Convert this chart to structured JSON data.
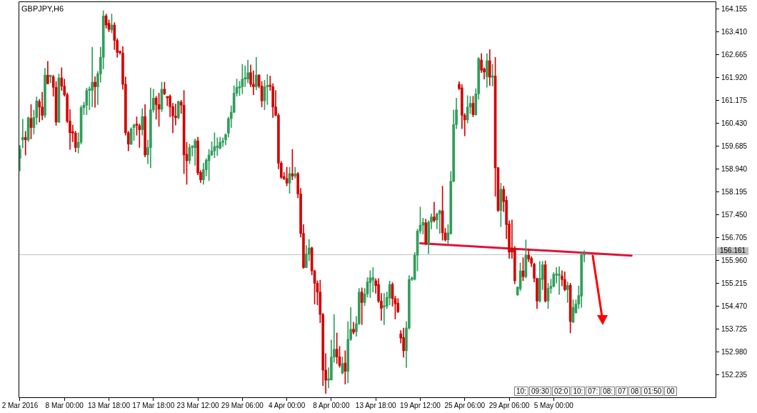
{
  "chart_data": {
    "type": "candlestick",
    "title": "GBPJPY,H6",
    "categories": [
      "2 Mar 2016",
      null,
      null,
      null,
      null,
      null,
      null,
      null,
      null,
      null,
      null,
      null,
      null,
      null,
      null,
      null,
      "8 Mar 00:00",
      null,
      null,
      null,
      null,
      null,
      null,
      null,
      null,
      null,
      null,
      null,
      null,
      null,
      null,
      null,
      "13 Mar 18:00",
      null,
      null,
      null,
      null,
      null,
      null,
      null,
      null,
      null,
      null,
      null,
      null,
      null,
      null,
      null,
      "17 Mar 18:00",
      null,
      null,
      null,
      null,
      null,
      null,
      null,
      null,
      null,
      null,
      null,
      null,
      null,
      null,
      null,
      "23 Mar 12:00",
      null,
      null,
      null,
      null,
      null,
      null,
      null,
      null,
      null,
      null,
      null,
      null,
      null,
      null,
      null,
      "29 Mar 06:00",
      null,
      null,
      null,
      null,
      null,
      null,
      null,
      null,
      null,
      null,
      null,
      null,
      null,
      null,
      null,
      "4 Apr 00:00",
      null,
      null,
      null,
      null,
      null,
      null,
      null,
      null,
      null,
      null,
      null,
      null,
      null,
      null,
      null,
      "8 Apr 00:00",
      null,
      null,
      null,
      null,
      null,
      null,
      null,
      null,
      null,
      null,
      null,
      null,
      null,
      null,
      null,
      "13 Apr 18:00",
      null,
      null,
      null,
      null,
      null,
      null,
      null,
      null,
      null,
      null,
      null,
      null,
      null,
      null,
      null,
      "19 Apr 12:00",
      null,
      null,
      null,
      null,
      null,
      null,
      null,
      null,
      null,
      null,
      null,
      null,
      null,
      null,
      null,
      "25 Apr 06:00",
      null,
      null,
      null,
      null,
      null,
      null,
      null,
      null,
      null,
      null,
      null,
      null,
      null,
      null,
      null,
      "29 Apr 06:00",
      null,
      null,
      null,
      null,
      null,
      null,
      null,
      null,
      null,
      null,
      null,
      null,
      null,
      null,
      null,
      "5 May 00:00",
      null,
      null,
      null,
      null,
      null,
      null,
      null,
      null,
      null,
      null,
      null,
      null,
      null,
      null,
      null,
      null,
      null,
      null,
      null,
      null,
      null,
      null,
      null,
      null,
      null,
      null,
      null,
      null,
      null,
      null,
      null,
      null,
      null,
      null,
      null,
      null,
      null,
      null,
      null,
      null,
      null,
      null,
      null,
      null,
      null,
      null,
      null,
      null,
      null,
      null,
      null,
      null,
      null,
      null,
      null,
      null,
      null,
      null
    ],
    "ohlc": [
      [
        159.3,
        159.72,
        158.89,
        159.6
      ],
      [
        159.9,
        160.57,
        159.64,
        159.98
      ],
      [
        159.98,
        160.18,
        159.4,
        159.9
      ],
      [
        159.9,
        160.65,
        159.84,
        160.62
      ],
      [
        160.6,
        161.05,
        159.93,
        160.3
      ],
      [
        160.3,
        160.87,
        160.09,
        160.63
      ],
      [
        160.63,
        161.3,
        160.4,
        161.17
      ],
      [
        161.15,
        161.22,
        160.48,
        160.97
      ],
      [
        160.97,
        161.45,
        160.55,
        160.7
      ],
      [
        160.7,
        162.23,
        160.63,
        162.01
      ],
      [
        162.01,
        162.46,
        161.72,
        161.73
      ],
      [
        161.96,
        162.01,
        161.76,
        161.98
      ],
      [
        161.96,
        162.01,
        161.32,
        161.61
      ],
      [
        161.61,
        161.8,
        160.37,
        160.48
      ],
      [
        160.48,
        162.05,
        160.46,
        161.92
      ],
      [
        161.92,
        162.25,
        161.51,
        161.65
      ],
      [
        161.65,
        161.88,
        161.32,
        161.37
      ],
      [
        161.37,
        161.43,
        160.46,
        160.51
      ],
      [
        160.51,
        160.89,
        159.59,
        160.13
      ],
      [
        160.13,
        160.38,
        159.84,
        160.12
      ],
      [
        160.12,
        160.18,
        159.51,
        159.65
      ],
      [
        159.65,
        160.13,
        159.47,
        159.82
      ],
      [
        159.82,
        161.01,
        159.76,
        160.95
      ],
      [
        160.95,
        161.13,
        160.72,
        161.03
      ],
      [
        161.03,
        161.59,
        160.72,
        161.51
      ],
      [
        161.51,
        161.63,
        160.88,
        161.52
      ],
      [
        161.51,
        162.92,
        160.98,
        161.78
      ],
      [
        161.78,
        161.96,
        160.96,
        161.63
      ],
      [
        161.63,
        162.13,
        161.05,
        162.05
      ],
      [
        162.05,
        162.92,
        161.78,
        162.59
      ],
      [
        162.59,
        164.11,
        162.21,
        163.94
      ],
      [
        163.94,
        164.0,
        163.54,
        163.64
      ],
      [
        163.7,
        163.81,
        163.42,
        163.5
      ],
      [
        163.48,
        164.0,
        163.39,
        163.64
      ],
      [
        163.64,
        163.72,
        162.84,
        163.14
      ],
      [
        163.14,
        163.2,
        162.59,
        162.75
      ],
      [
        162.76,
        162.8,
        162.69,
        162.74
      ],
      [
        162.73,
        162.94,
        161.55,
        161.71
      ],
      [
        161.71,
        161.95,
        160.05,
        160.13
      ],
      [
        160.13,
        160.18,
        159.54,
        159.76
      ],
      [
        159.76,
        160.3,
        159.74,
        160.26
      ],
      [
        160.3,
        160.42,
        159.88,
        160.38
      ],
      [
        160.38,
        160.65,
        160.05,
        160.37
      ],
      [
        160.36,
        160.42,
        159.65,
        160.23
      ],
      [
        160.23,
        160.92,
        160.05,
        160.66
      ],
      [
        160.66,
        161.05,
        159.34,
        159.41
      ],
      [
        159.41,
        159.9,
        159.12,
        159.65
      ],
      [
        159.65,
        161.59,
        158.99,
        160.88
      ],
      [
        160.88,
        161.55,
        160.8,
        161.26
      ],
      [
        161.26,
        161.32,
        160.57,
        161.05
      ],
      [
        161.05,
        161.42,
        160.34,
        160.9
      ],
      [
        160.9,
        161.78,
        160.82,
        161.55
      ],
      [
        161.55,
        161.78,
        161.37,
        161.4
      ],
      [
        161.28,
        161.3,
        161.01,
        161.27
      ],
      [
        161.32,
        161.37,
        160.65,
        160.98
      ],
      [
        160.98,
        161.09,
        160.13,
        160.68
      ],
      [
        160.68,
        161.07,
        160.38,
        160.62
      ],
      [
        160.62,
        161.17,
        160.58,
        161.15
      ],
      [
        161.13,
        161.19,
        160.76,
        161.03
      ],
      [
        161.03,
        161.51,
        158.8,
        159.41
      ],
      [
        159.43,
        159.82,
        158.45,
        159.22
      ],
      [
        159.22,
        159.76,
        159.12,
        159.65
      ],
      [
        159.65,
        159.72,
        159.37,
        159.66
      ],
      [
        159.64,
        159.93,
        159.07,
        159.87
      ],
      [
        159.87,
        159.99,
        158.76,
        158.82
      ],
      [
        158.84,
        158.9,
        158.51,
        158.6
      ],
      [
        158.6,
        159.14,
        158.45,
        158.93
      ],
      [
        158.93,
        159.29,
        158.72,
        159.24
      ],
      [
        159.22,
        159.59,
        158.57,
        159.41
      ],
      [
        159.41,
        159.84,
        159.39,
        159.54
      ],
      [
        159.54,
        160.13,
        159.32,
        159.68
      ],
      [
        159.65,
        159.97,
        159.39,
        159.7
      ],
      [
        159.63,
        159.99,
        159.6,
        159.82
      ],
      [
        159.82,
        159.97,
        159.68,
        159.83
      ],
      [
        159.9,
        160.1,
        159.74,
        160.07
      ],
      [
        160.12,
        160.64,
        159.99,
        160.59
      ],
      [
        160.59,
        161.01,
        160.3,
        160.8
      ],
      [
        160.8,
        161.67,
        160.78,
        161.42
      ],
      [
        161.42,
        161.88,
        161.32,
        161.61
      ],
      [
        161.59,
        161.81,
        161.34,
        161.63
      ],
      [
        161.63,
        162.36,
        161.4,
        161.88
      ],
      [
        161.88,
        162.31,
        161.63,
        161.89
      ],
      [
        161.88,
        162.5,
        161.76,
        162.09
      ],
      [
        162.09,
        162.34,
        161.63,
        161.71
      ],
      [
        161.71,
        162.15,
        161.37,
        161.63
      ],
      [
        161.63,
        162.59,
        161.53,
        162.01
      ],
      [
        162.01,
        162.03,
        161.59,
        161.65
      ],
      [
        161.65,
        161.8,
        160.97,
        161.17
      ],
      [
        161.17,
        161.84,
        160.88,
        161.63
      ],
      [
        161.63,
        162.03,
        161.05,
        161.65
      ],
      [
        161.65,
        161.98,
        161.51,
        161.64
      ],
      [
        161.63,
        161.73,
        160.63,
        160.97
      ],
      [
        160.97,
        161.51,
        160.68,
        160.7
      ],
      [
        160.7,
        160.76,
        158.95,
        159.14
      ],
      [
        159.14,
        159.2,
        158.64,
        158.68
      ],
      [
        158.7,
        158.84,
        158.6,
        158.64
      ],
      [
        158.64,
        159.01,
        158.4,
        158.49
      ],
      [
        158.49,
        159.01,
        158.16,
        158.8
      ],
      [
        158.8,
        159.59,
        158.6,
        158.72
      ],
      [
        158.72,
        159.01,
        158.65,
        158.79
      ],
      [
        158.8,
        158.84,
        158.01,
        158.14
      ],
      [
        158.14,
        158.32,
        156.73,
        156.85
      ],
      [
        156.85,
        157.14,
        155.71,
        155.74
      ],
      [
        155.74,
        156.46,
        155.73,
        156.18
      ],
      [
        156.18,
        156.66,
        155.96,
        156.38
      ],
      [
        156.38,
        156.41,
        155.5,
        155.63
      ],
      [
        155.63,
        155.66,
        154.55,
        155.23
      ],
      [
        155.23,
        155.31,
        154.52,
        154.94
      ],
      [
        154.94,
        155.33,
        153.94,
        154.21
      ],
      [
        154.21,
        154.25,
        151.89,
        152.4
      ],
      [
        152.4,
        152.94,
        151.64,
        152.07
      ],
      [
        152.07,
        152.48,
        151.82,
        152.08
      ],
      [
        152.08,
        153.38,
        152.07,
        152.82
      ],
      [
        152.82,
        154.21,
        152.65,
        153.08
      ],
      [
        153.08,
        153.61,
        152.61,
        152.83
      ],
      [
        152.83,
        153.17,
        152.49,
        152.55
      ],
      [
        152.3,
        152.83,
        152.27,
        152.61
      ],
      [
        152.63,
        153.03,
        151.94,
        152.36
      ],
      [
        152.36,
        153.98,
        151.98,
        153.4
      ],
      [
        153.4,
        154.44,
        153.36,
        153.73
      ],
      [
        153.73,
        153.96,
        153.57,
        153.63
      ],
      [
        153.65,
        154.15,
        153.5,
        153.91
      ],
      [
        153.91,
        155.06,
        153.88,
        154.94
      ],
      [
        154.94,
        155.08,
        153.88,
        154.6
      ],
      [
        154.6,
        155.06,
        154.5,
        154.88
      ],
      [
        154.88,
        155.41,
        154.78,
        155.27
      ],
      [
        155.25,
        155.64,
        154.76,
        155.41
      ],
      [
        155.33,
        155.74,
        154.94,
        155.41
      ],
      [
        155.31,
        155.38,
        154.9,
        155.15
      ],
      [
        155.19,
        155.38,
        154.6,
        154.65
      ],
      [
        154.65,
        154.9,
        154.02,
        154.41
      ],
      [
        154.45,
        154.9,
        153.88,
        154.47
      ],
      [
        154.48,
        154.94,
        154.4,
        154.77
      ],
      [
        154.75,
        155.3,
        154.52,
        155.19
      ],
      [
        155.19,
        155.25,
        154.48,
        154.73
      ],
      [
        154.73,
        154.81,
        154.06,
        154.56
      ],
      [
        154.58,
        154.73,
        154.27,
        154.3
      ],
      [
        153.58,
        153.69,
        153.28,
        153.44
      ],
      [
        153.46,
        153.77,
        152.82,
        153.03
      ],
      [
        153.03,
        153.98,
        152.48,
        153.77
      ],
      [
        153.77,
        155.48,
        153.73,
        155.35
      ],
      [
        155.35,
        155.44,
        155.31,
        155.36
      ],
      [
        155.36,
        156.23,
        155.33,
        156.14
      ],
      [
        156.14,
        156.99,
        155.63,
        156.93
      ],
      [
        156.93,
        157.71,
        156.85,
        157.12
      ],
      [
        157.12,
        157.35,
        156.83,
        157.21
      ],
      [
        157.2,
        157.32,
        156.48,
        156.52
      ],
      [
        156.52,
        157.27,
        156.19,
        157.22
      ],
      [
        157.22,
        157.49,
        157.0,
        157.39
      ],
      [
        157.39,
        157.87,
        157.22,
        157.27
      ],
      [
        157.29,
        157.52,
        157.0,
        157.49
      ],
      [
        157.49,
        157.62,
        156.85,
        157.59
      ],
      [
        157.59,
        158.39,
        156.63,
        156.87
      ],
      [
        156.87,
        157.02,
        156.6,
        156.64
      ],
      [
        156.64,
        157.14,
        156.52,
        156.87
      ],
      [
        156.85,
        158.87,
        156.82,
        158.55
      ],
      [
        158.55,
        160.87,
        158.53,
        160.4
      ],
      [
        160.4,
        161.26,
        160.26,
        160.88
      ],
      [
        161.71,
        161.8,
        161.53,
        161.57
      ],
      [
        161.59,
        161.7,
        160.26,
        160.7
      ],
      [
        160.7,
        160.76,
        160.03,
        160.55
      ],
      [
        160.55,
        161.34,
        160.45,
        160.97
      ],
      [
        160.97,
        161.32,
        160.76,
        161.09
      ],
      [
        161.09,
        161.32,
        160.65,
        160.72
      ],
      [
        160.72,
        161.57,
        160.7,
        161.4
      ],
      [
        161.4,
        162.59,
        161.22,
        162.55
      ],
      [
        162.5,
        162.71,
        162.09,
        162.17
      ],
      [
        162.21,
        162.25,
        161.88,
        162.11
      ],
      [
        161.96,
        162.71,
        161.61,
        162.48
      ],
      [
        162.48,
        162.84,
        161.67,
        161.94
      ],
      [
        161.94,
        162.36,
        161.65,
        161.98
      ],
      [
        161.98,
        162.59,
        158.06,
        158.99
      ],
      [
        158.99,
        159.01,
        157.56,
        157.6
      ],
      [
        157.6,
        158.49,
        157.07,
        158.29
      ],
      [
        158.29,
        158.39,
        157.56,
        157.89
      ],
      [
        157.93,
        158.06,
        156.68,
        157.14
      ],
      [
        157.16,
        157.27,
        156.04,
        156.24
      ],
      [
        156.35,
        157.29,
        156.04,
        156.24
      ],
      [
        156.35,
        156.43,
        155.21,
        155.31
      ],
      [
        154.85,
        155.12,
        154.83,
        155.1
      ],
      [
        155.05,
        155.89,
        154.98,
        155.63
      ],
      [
        155.63,
        156.06,
        155.31,
        155.44
      ],
      [
        155.44,
        156.64,
        155.4,
        156.14
      ],
      [
        156.14,
        156.35,
        155.93,
        156.02
      ],
      [
        156.04,
        156.1,
        155.77,
        155.88
      ],
      [
        155.85,
        155.89,
        155.27,
        155.39
      ],
      [
        155.38,
        155.4,
        154.4,
        154.65
      ],
      [
        154.65,
        155.94,
        154.61,
        155.39
      ],
      [
        155.35,
        155.94,
        155.02,
        155.83
      ],
      [
        155.83,
        155.96,
        154.61,
        154.65
      ],
      [
        154.65,
        155.23,
        154.4,
        155.06
      ],
      [
        155.06,
        155.36,
        154.9,
        155.13
      ],
      [
        155.13,
        155.58,
        155.1,
        155.52
      ],
      [
        155.49,
        155.74,
        155.23,
        155.52
      ],
      [
        155.48,
        155.77,
        154.86,
        155.49
      ],
      [
        155.46,
        155.64,
        155.14,
        155.35
      ],
      [
        155.35,
        155.6,
        154.98,
        155.02
      ],
      [
        155.02,
        155.27,
        154.6,
        155.16
      ],
      [
        155.16,
        155.23,
        153.61,
        153.98
      ],
      [
        153.96,
        154.69,
        153.94,
        154.44
      ],
      [
        154.27,
        154.69,
        154.25,
        154.55
      ],
      [
        154.55,
        155.14,
        154.4,
        154.83
      ],
      [
        154.81,
        156.23,
        154.44,
        156.16
      ],
      [
        156.15,
        156.29,
        155.92,
        156.16
      ],
      null,
      null,
      null,
      null,
      null,
      null,
      null,
      null,
      null,
      null,
      null,
      null,
      null,
      null,
      null,
      null,
      null,
      null,
      null,
      null,
      null,
      null,
      null,
      null,
      null,
      null,
      null,
      null,
      null,
      null,
      null,
      null,
      null,
      null,
      null,
      null,
      null,
      null,
      null,
      null,
      null,
      null,
      null,
      null,
      null,
      null,
      null
    ],
    "colors": [
      "#2f9e5a",
      "#2f9e5a",
      "#d40000",
      "#2f9e5a",
      "#d40000",
      "#2f9e5a",
      "#2f9e5a",
      "#d40000",
      "#d40000",
      "#2f9e5a",
      "#d40000",
      "#2f9e5a",
      "#d40000",
      "#d40000",
      "#2f9e5a",
      "#d40000",
      "#d40000",
      "#d40000",
      "#d40000",
      "#d40000",
      "#d40000",
      "#2f9e5a",
      "#2f9e5a",
      "#2f9e5a",
      "#2f9e5a",
      "#2f9e5a",
      "#2f9e5a",
      "#d40000",
      "#2f9e5a",
      "#2f9e5a",
      "#2f9e5a",
      "#d40000",
      "#d40000",
      "#2f9e5a",
      "#d40000",
      "#d40000",
      "#d40000",
      "#d40000",
      "#d40000",
      "#d40000",
      "#2f9e5a",
      "#2f9e5a",
      "#d40000",
      "#d40000",
      "#2f9e5a",
      "#d40000",
      "#2f9e5a",
      "#2f9e5a",
      "#2f9e5a",
      "#d40000",
      "#d40000",
      "#2f9e5a",
      "#d40000",
      "#d40000",
      "#d40000",
      "#d40000",
      "#d40000",
      "#2f9e5a",
      "#d40000",
      "#d40000",
      "#d40000",
      "#2f9e5a",
      "#2f9e5a",
      "#2f9e5a",
      "#d40000",
      "#d40000",
      "#2f9e5a",
      "#2f9e5a",
      "#2f9e5a",
      "#2f9e5a",
      "#2f9e5a",
      "#2f9e5a",
      "#2f9e5a",
      "#2f9e5a",
      "#2f9e5a",
      "#2f9e5a",
      "#2f9e5a",
      "#2f9e5a",
      "#2f9e5a",
      "#2f9e5a",
      "#2f9e5a",
      "#2f9e5a",
      "#2f9e5a",
      "#d40000",
      "#d40000",
      "#2f9e5a",
      "#d40000",
      "#d40000",
      "#2f9e5a",
      "#2f9e5a",
      "#d40000",
      "#d40000",
      "#d40000",
      "#d40000",
      "#d40000",
      "#d40000",
      "#d40000",
      "#2f9e5a",
      "#d40000",
      "#2f9e5a",
      "#d40000",
      "#d40000",
      "#d40000",
      "#2f9e5a",
      "#2f9e5a",
      "#d40000",
      "#d40000",
      "#d40000",
      "#d40000",
      "#d40000",
      "#d40000",
      "#2f9e5a",
      "#2f9e5a",
      "#2f9e5a",
      "#d40000",
      "#d40000",
      "#2f9e5a",
      "#d40000",
      "#2f9e5a",
      "#2f9e5a",
      "#d40000",
      "#2f9e5a",
      "#2f9e5a",
      "#d40000",
      "#2f9e5a",
      "#2f9e5a",
      "#2f9e5a",
      "#2f9e5a",
      "#d40000",
      "#d40000",
      "#d40000",
      "#2f9e5a",
      "#2f9e5a",
      "#2f9e5a",
      "#d40000",
      "#d40000",
      "#d40000",
      "#d40000",
      "#d40000",
      "#2f9e5a",
      "#2f9e5a",
      "#2f9e5a",
      "#2f9e5a",
      "#2f9e5a",
      "#2f9e5a",
      "#2f9e5a",
      "#d40000",
      "#2f9e5a",
      "#2f9e5a",
      "#d40000",
      "#2f9e5a",
      "#2f9e5a",
      "#d40000",
      "#d40000",
      "#2f9e5a",
      "#2f9e5a",
      "#2f9e5a",
      "#2f9e5a",
      "#d40000",
      "#d40000",
      "#d40000",
      "#2f9e5a",
      "#2f9e5a",
      "#d40000",
      "#2f9e5a",
      "#2f9e5a",
      "#d40000",
      "#d40000",
      "#2f9e5a",
      "#d40000",
      "#2f9e5a",
      "#d40000",
      "#d40000",
      "#2f9e5a",
      "#d40000",
      "#d40000",
      "#d40000",
      "#d40000",
      "#d40000",
      "#2f9e5a",
      "#2f9e5a",
      "#d40000",
      "#2f9e5a",
      "#d40000",
      "#d40000",
      "#d40000",
      "#d40000",
      "#2f9e5a",
      "#2f9e5a",
      "#d40000",
      "#2f9e5a",
      "#2f9e5a",
      "#2f9e5a",
      "#2f9e5a",
      "#2f9e5a",
      "#d40000",
      "#d40000",
      "#2f9e5a",
      "#d40000",
      "#2f9e5a",
      "#2f9e5a",
      "#2f9e5a",
      "#2f9e5a",
      "#2f9e5a",
      null,
      null,
      null,
      null,
      null,
      null,
      null,
      null,
      null,
      null,
      null,
      null,
      null,
      null,
      null,
      null,
      null,
      null,
      null,
      null,
      null,
      null,
      null,
      null,
      null,
      null,
      null,
      null,
      null,
      null,
      null,
      null,
      null,
      null,
      null,
      null,
      null,
      null,
      null,
      null,
      null,
      null,
      null,
      null,
      null,
      null,
      null
    ],
    "series": [
      {
        "type": "line",
        "color": "#dc143c",
        "values": [
          null,
          null,
          null,
          null,
          null,
          null,
          null,
          null,
          null,
          null,
          null,
          null,
          null,
          null,
          null,
          null,
          null,
          null,
          null,
          null,
          null,
          null,
          null,
          null,
          null,
          null,
          null,
          null,
          null,
          null,
          null,
          null,
          null,
          null,
          null,
          null,
          null,
          null,
          null,
          null,
          null,
          null,
          null,
          null,
          null,
          null,
          null,
          null,
          null,
          null,
          null,
          null,
          null,
          null,
          null,
          null,
          null,
          null,
          null,
          null,
          null,
          null,
          null,
          null,
          null,
          null,
          null,
          null,
          null,
          null,
          null,
          null,
          null,
          null,
          null,
          null,
          null,
          null,
          null,
          null,
          null,
          null,
          null,
          null,
          null,
          null,
          null,
          null,
          null,
          null,
          null,
          null,
          null,
          null,
          null,
          null,
          null,
          null,
          null,
          null,
          null,
          null,
          null,
          null,
          null,
          null,
          null,
          null,
          null,
          null,
          null,
          null,
          null,
          null,
          null,
          null,
          null,
          null,
          null,
          null,
          null,
          null,
          null,
          null,
          null,
          null,
          null,
          null,
          null,
          null,
          null,
          null,
          null,
          null,
          null,
          null,
          null,
          null,
          null,
          null,
          null,
          null,
          null,
          null,
          156.53,
          null,
          null,
          null,
          null,
          null,
          null,
          null,
          null,
          null,
          null,
          null,
          null,
          null,
          null,
          null,
          null,
          null,
          null,
          null,
          null,
          null,
          null,
          null,
          null,
          null,
          null,
          null,
          null,
          null,
          null,
          null,
          null,
          null,
          null,
          null,
          null,
          null,
          null,
          null,
          null,
          null,
          null,
          null,
          null,
          null,
          null,
          null,
          null,
          null,
          null,
          null,
          null,
          null,
          null,
          null,
          null,
          null,
          null,
          null,
          null,
          null,
          null,
          null,
          null,
          null,
          null,
          null,
          null,
          null,
          null,
          null,
          null,
          null,
          null,
          null,
          156.13,
          null,
          null,
          null,
          null,
          null,
          null,
          null,
          null,
          null,
          null,
          null,
          null,
          null,
          null,
          null,
          null,
          null,
          null,
          null,
          null,
          null,
          null,
          null,
          null,
          null,
          null,
          null,
          null,
          null,
          null
        ]
      }
    ],
    "ylim": [
      151.49,
      164.41
    ],
    "yticks": [
      152.235,
      {
        "value": 152.98,
        "label": "152.980"
      },
      153.725,
      {
        "value": 154.47,
        "label": "154.470"
      },
      155.215,
      {
        "value": 155.96,
        "label": "155.960"
      },
      156.705,
      {
        "value": 157.45,
        "label": "157.450"
      },
      158.195,
      {
        "value": 158.94,
        "label": "158.940"
      },
      159.685,
      {
        "value": 160.43,
        "label": "160.430"
      },
      161.175,
      {
        "value": 161.92,
        "label": "161.920"
      },
      162.665,
      {
        "value": 163.41,
        "label": "163.410"
      },
      164.155
    ],
    "ref_lines": [
      {
        "axis": "y",
        "value": 156.161,
        "label": "156.161",
        "color": "#c0c0c0"
      }
    ],
    "annotations": [
      "10:",
      "09:30",
      "02:0",
      "10:",
      "07:",
      "08:",
      "07",
      "08",
      "01:50",
      "00"
    ]
  }
}
